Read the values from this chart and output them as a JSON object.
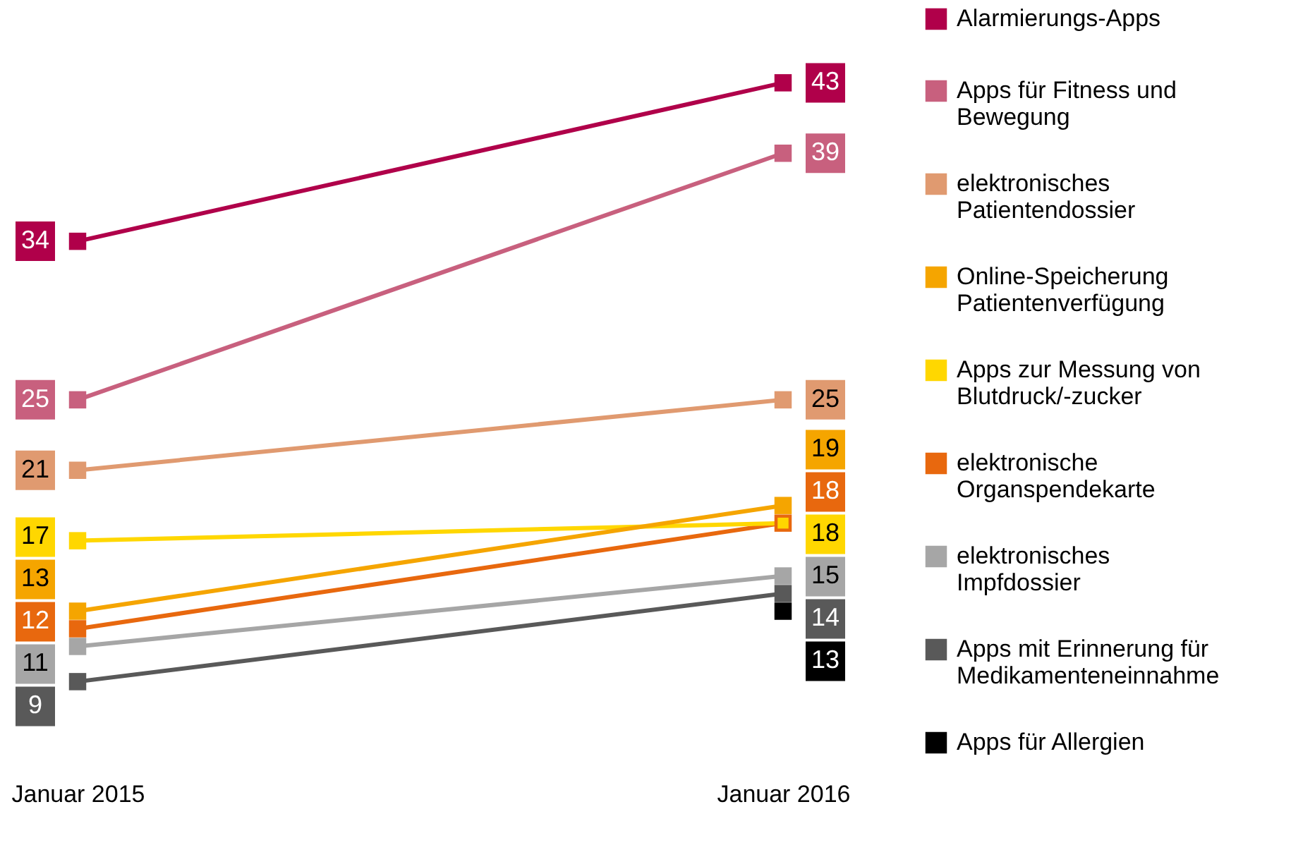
{
  "chart_data": {
    "type": "line",
    "categories": [
      "Januar 2015",
      "Januar 2016"
    ],
    "series": [
      {
        "name": "Alarmierungs-Apps",
        "color": "#b0004a",
        "values": [
          34,
          43
        ]
      },
      {
        "name": "Apps für Fitness und Bewegung",
        "color": "#c8607e",
        "values": [
          25,
          39
        ]
      },
      {
        "name": "elektronisches Patientendossier",
        "color": "#e09a70",
        "values": [
          21,
          25
        ]
      },
      {
        "name": "Online-Speicherung Patientenverfügung",
        "color": "#f5a500",
        "values": [
          13,
          19
        ]
      },
      {
        "name": "Apps zur Messung von Blutdruck/-zucker",
        "color": "#ffd700",
        "values": [
          17,
          18
        ]
      },
      {
        "name": "elektronische Organspendekarte",
        "color": "#e8680e",
        "values": [
          12,
          18
        ]
      },
      {
        "name": "elektronisches Impfdossier",
        "color": "#a6a6a6",
        "values": [
          11,
          15
        ]
      },
      {
        "name": "Apps mit Erinnerung für Medikamenteneinnahme",
        "color": "#595959",
        "values": [
          9,
          14
        ]
      },
      {
        "name": "Apps für Allergien",
        "color": "#000000",
        "values": [
          null,
          13
        ]
      }
    ],
    "data_labels": true,
    "marker": "square",
    "legend": "right",
    "grid": false
  }
}
